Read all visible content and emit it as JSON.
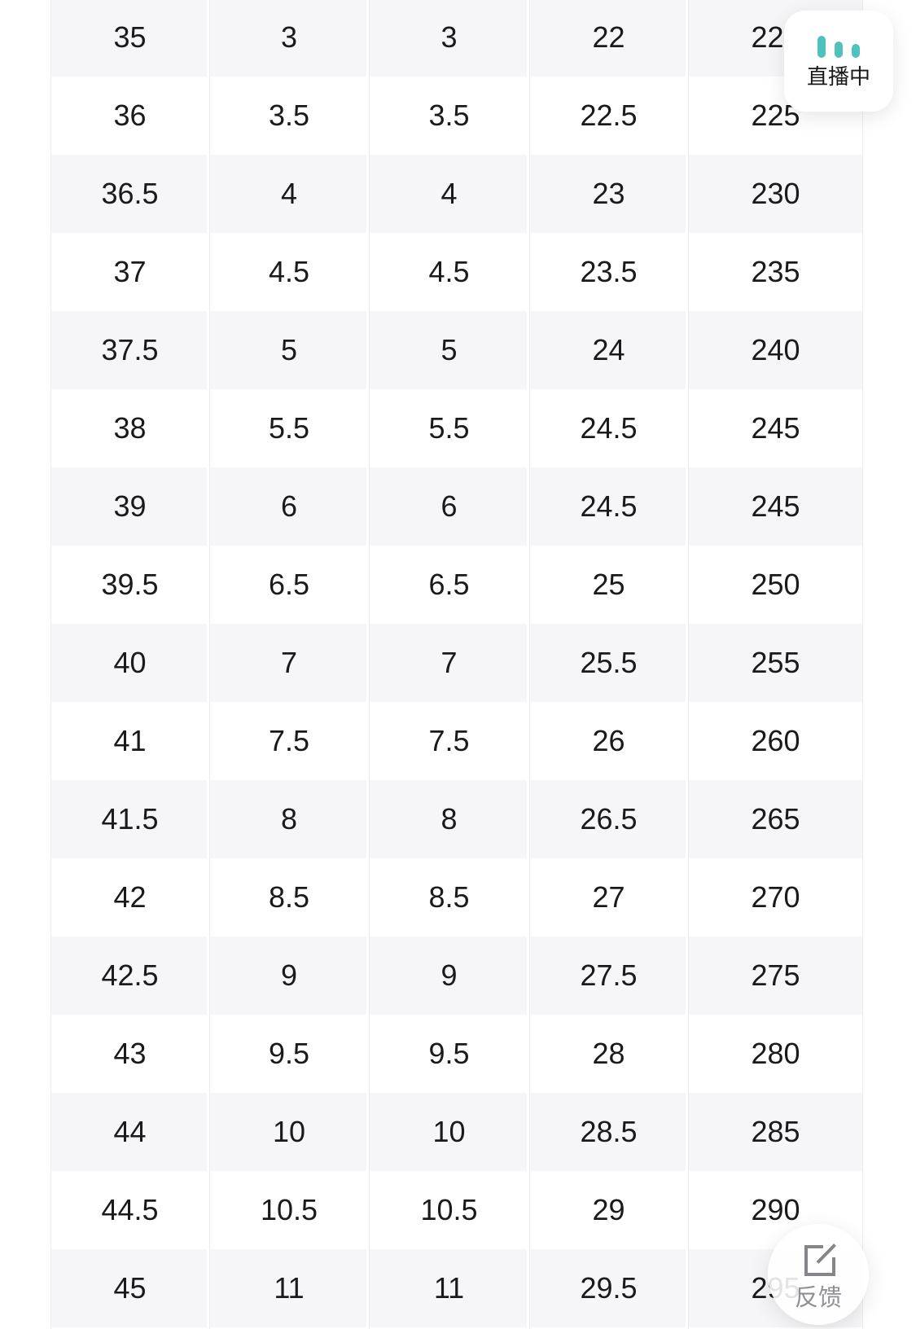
{
  "table": {
    "rows": [
      [
        "35",
        "3",
        "3",
        "22",
        "220"
      ],
      [
        "36",
        "3.5",
        "3.5",
        "22.5",
        "225"
      ],
      [
        "36.5",
        "4",
        "4",
        "23",
        "230"
      ],
      [
        "37",
        "4.5",
        "4.5",
        "23.5",
        "235"
      ],
      [
        "37.5",
        "5",
        "5",
        "24",
        "240"
      ],
      [
        "38",
        "5.5",
        "5.5",
        "24.5",
        "245"
      ],
      [
        "39",
        "6",
        "6",
        "24.5",
        "245"
      ],
      [
        "39.5",
        "6.5",
        "6.5",
        "25",
        "250"
      ],
      [
        "40",
        "7",
        "7",
        "25.5",
        "255"
      ],
      [
        "41",
        "7.5",
        "7.5",
        "26",
        "260"
      ],
      [
        "41.5",
        "8",
        "8",
        "26.5",
        "265"
      ],
      [
        "42",
        "8.5",
        "8.5",
        "27",
        "270"
      ],
      [
        "42.5",
        "9",
        "9",
        "27.5",
        "275"
      ],
      [
        "43",
        "9.5",
        "9.5",
        "28",
        "280"
      ],
      [
        "44",
        "10",
        "10",
        "28.5",
        "285"
      ],
      [
        "44.5",
        "10.5",
        "10.5",
        "29",
        "290"
      ],
      [
        "45",
        "11",
        "11",
        "29.5",
        "295"
      ]
    ]
  },
  "live_badge": {
    "label": "直播中",
    "icon": "live-bars-icon",
    "bar_color": "#4ec2bb"
  },
  "feedback_button": {
    "label": "反馈",
    "icon": "edit-icon"
  },
  "colors": {
    "row_alt_background": "#f6f6f8",
    "text": "#1a1a1c",
    "divider": "#ededf0",
    "muted_gray": "#8f8f94"
  }
}
